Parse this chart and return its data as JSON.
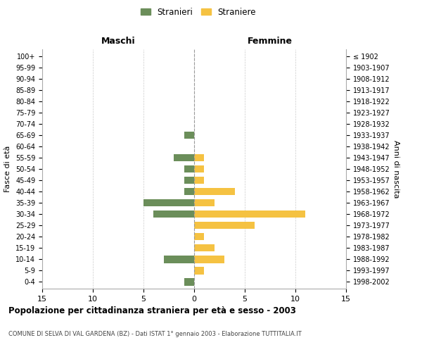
{
  "age_groups": [
    "100+",
    "95-99",
    "90-94",
    "85-89",
    "80-84",
    "75-79",
    "70-74",
    "65-69",
    "60-64",
    "55-59",
    "50-54",
    "45-49",
    "40-44",
    "35-39",
    "30-34",
    "25-29",
    "20-24",
    "15-19",
    "10-14",
    "5-9",
    "0-4"
  ],
  "birth_years": [
    "≤ 1902",
    "1903-1907",
    "1908-1912",
    "1913-1917",
    "1918-1922",
    "1923-1927",
    "1928-1932",
    "1933-1937",
    "1938-1942",
    "1943-1947",
    "1948-1952",
    "1953-1957",
    "1958-1962",
    "1963-1967",
    "1968-1972",
    "1973-1977",
    "1978-1982",
    "1983-1987",
    "1988-1992",
    "1993-1997",
    "1998-2002"
  ],
  "maschi": [
    0,
    0,
    0,
    0,
    0,
    0,
    0,
    1,
    0,
    2,
    1,
    1,
    1,
    5,
    4,
    0,
    0,
    0,
    3,
    0,
    1
  ],
  "femmine": [
    0,
    0,
    0,
    0,
    0,
    0,
    0,
    0,
    0,
    1,
    1,
    1,
    4,
    2,
    11,
    6,
    1,
    2,
    3,
    1,
    0
  ],
  "color_maschi": "#6b8e5a",
  "color_femmine": "#f5c242",
  "title": "Popolazione per cittadinanza straniera per età e sesso - 2003",
  "subtitle": "COMUNE DI SELVA DI VAL GARDENA (BZ) - Dati ISTAT 1° gennaio 2003 - Elaborazione TUTTITALIA.IT",
  "xlabel_left": "Maschi",
  "xlabel_right": "Femmine",
  "ylabel_left": "Fasce di età",
  "ylabel_right": "Anni di nascita",
  "legend_maschi": "Stranieri",
  "legend_femmine": "Straniere",
  "xlim": 15,
  "background_color": "#ffffff",
  "grid_color": "#cccccc"
}
